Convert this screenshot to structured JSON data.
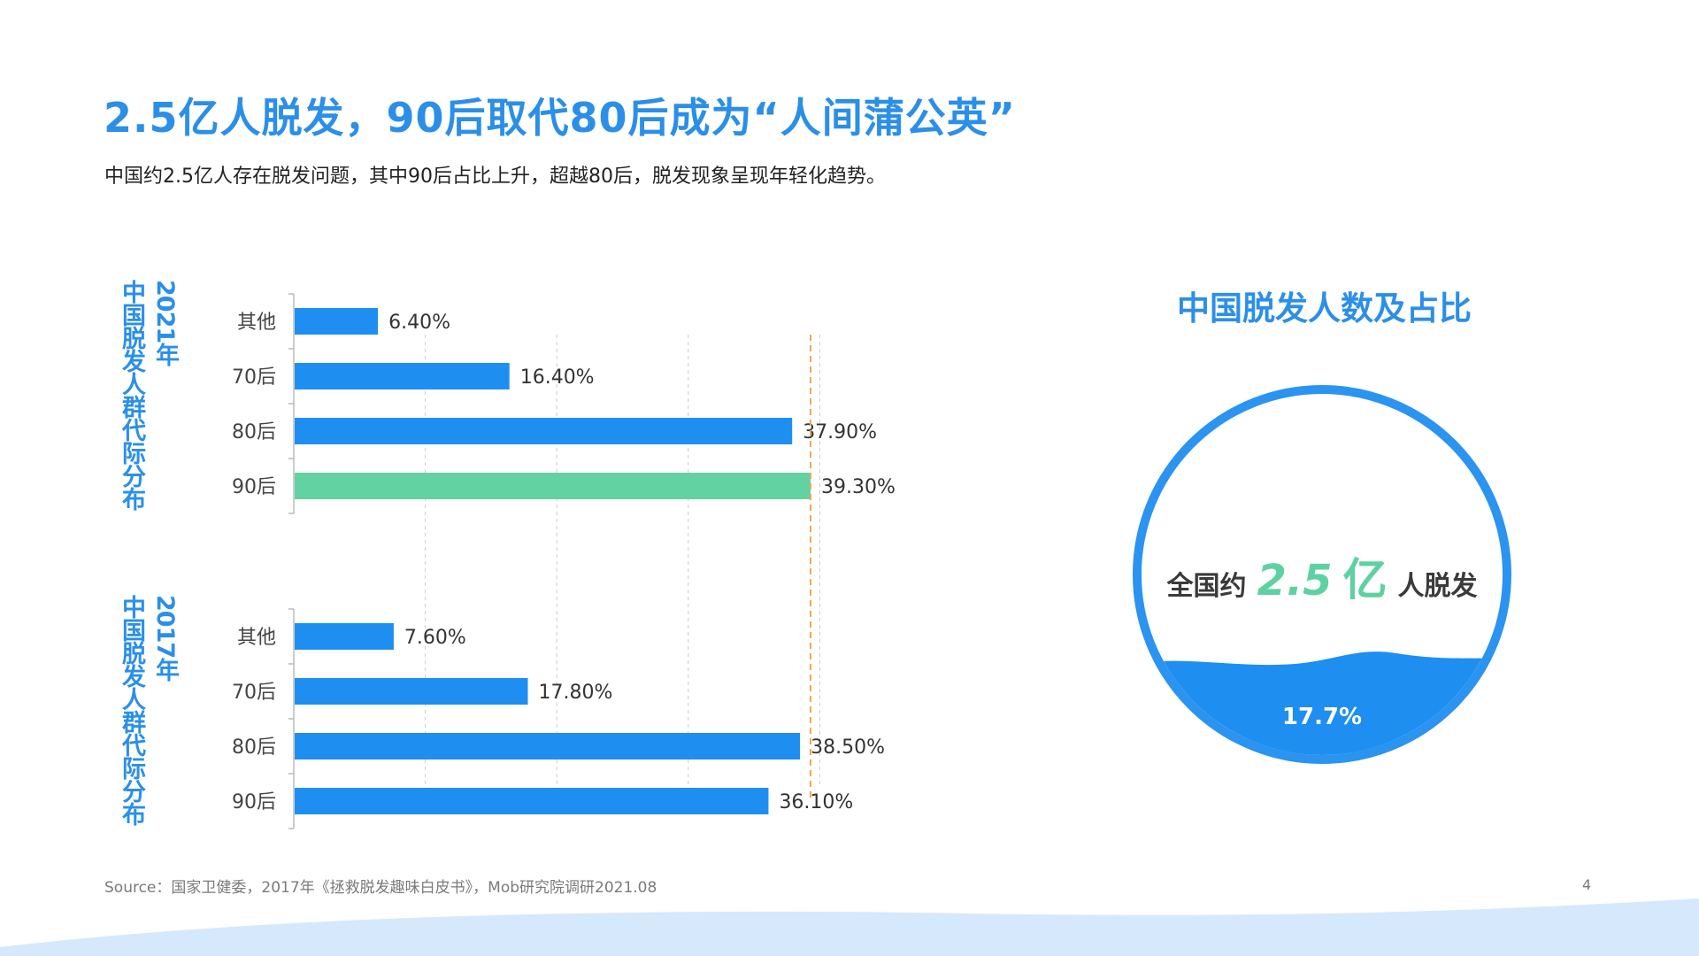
{
  "title": "2.5亿人脱发，90后取代80后成为“人间蒲公英”",
  "subtitle": "中国约2.5亿人存在脱发问题，其中90后占比上升，超越80后，脱发现象呈现年轻化趋势。",
  "colors": {
    "accent": "#2b8fe8",
    "bar": "#1e8ff0",
    "highlight": "#63d2a2",
    "reference_line": "#f5a64a"
  },
  "chart_data": [
    {
      "type": "bar",
      "orientation": "horizontal",
      "label_year": "2021年",
      "label_text": "中国脱发人群代际分布",
      "categories": [
        "其他",
        "70后",
        "80后",
        "90后"
      ],
      "values": [
        6.4,
        16.4,
        37.9,
        39.3
      ],
      "value_labels": [
        "6.40%",
        "16.40%",
        "37.90%",
        "39.30%"
      ],
      "highlight_category": "90后",
      "xlim": [
        0,
        50
      ],
      "grid": true
    },
    {
      "type": "bar",
      "orientation": "horizontal",
      "label_year": "2017年",
      "label_text": "中国脱发人群代际分布",
      "categories": [
        "其他",
        "70后",
        "80后",
        "90后"
      ],
      "values": [
        7.6,
        17.8,
        38.5,
        36.1
      ],
      "value_labels": [
        "7.60%",
        "17.80%",
        "38.50%",
        "36.10%"
      ],
      "xlim": [
        0,
        50
      ],
      "grid": true
    }
  ],
  "reference_line_value": 39.3,
  "stat_panel": {
    "title": "中国脱发人数及占比",
    "prefix": "全国约",
    "number": "2.5",
    "unit": "亿",
    "suffix": "人脱发",
    "percent_label": "17.7%",
    "fill_fraction": 0.177
  },
  "source": "Source：国家卫健委，2017年《拯救脱发趣味白皮书》，Mob研究院调研2021.08",
  "page_number": "4"
}
